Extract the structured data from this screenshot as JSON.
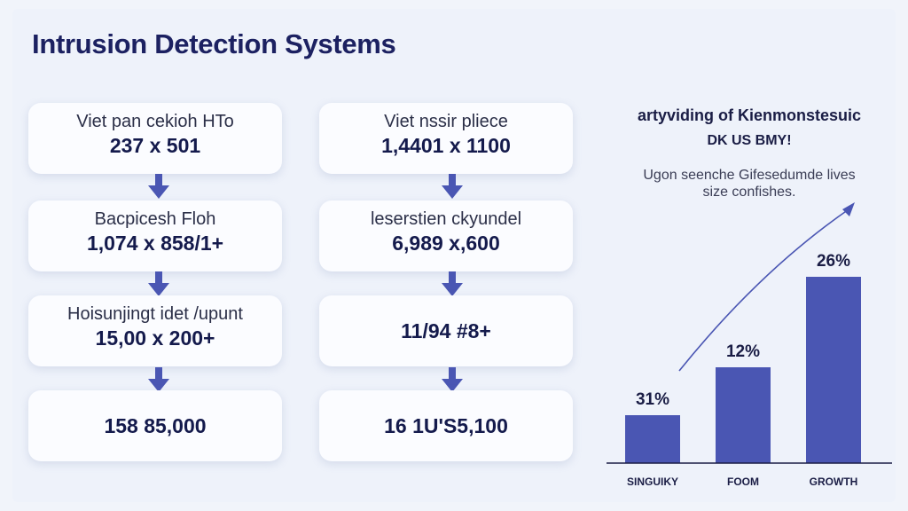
{
  "title": "Intrusion Detection Systems",
  "flow_left": [
    {
      "label": "Viet pan cekioh HTo",
      "value": "237 x 501"
    },
    {
      "label": "Bacpicesh Floh",
      "value": "1,074 x 858/1+"
    },
    {
      "label": "Hoisunjingt idet /upunt",
      "value": "15,00 x 200+"
    },
    {
      "label": "",
      "value": "158 85,000"
    }
  ],
  "flow_right": [
    {
      "label": "Viet nssir pliece",
      "value": "1,4401 x 1100"
    },
    {
      "label": "leserstien ckyundel",
      "value": "6,989 x,600"
    },
    {
      "label": "",
      "value": "11/94 #8+"
    },
    {
      "label": "",
      "value": "16 1U'S5,100"
    }
  ],
  "colors": {
    "accent": "#4a56b3",
    "bar": "#4a56b3",
    "text": "#1c2161"
  },
  "chart_data": {
    "type": "bar",
    "title": "artyviding of Kienmonstesuic",
    "subtitle": "DK US BMY!",
    "note_lines": [
      "Ugon seenche Gifesedumde lives",
      "size confishes."
    ],
    "categories": [
      "SINGUIKY",
      "FOOM",
      "GROWTH"
    ],
    "values": [
      9,
      18,
      35
    ],
    "data_labels": [
      "31%",
      "12%",
      "26%"
    ],
    "trend_arrow": true,
    "grid": false,
    "legend": "none"
  }
}
